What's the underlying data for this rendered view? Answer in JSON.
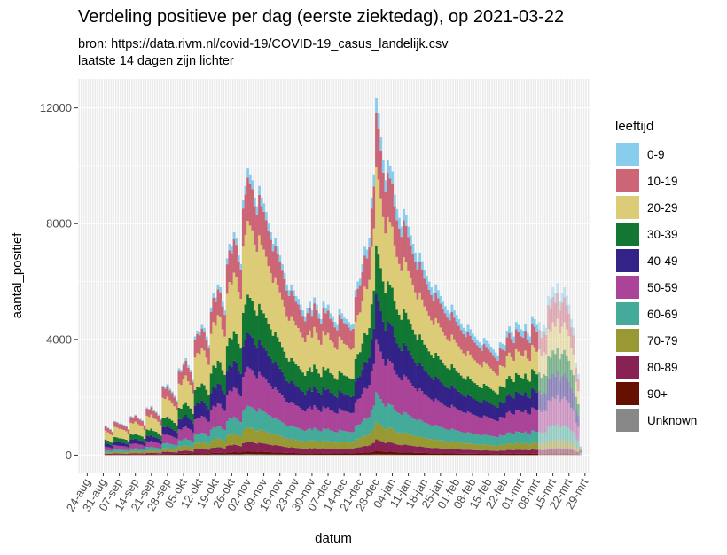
{
  "chart_data": {
    "type": "bar",
    "stacked": true,
    "title": "Verdeling positieve per dag (eerste ziektedag), op 2021-03-22",
    "subtitle": [
      "bron: https://data.rivm.nl/covid-19/COVID-19_casus_landelijk.csv",
      "laatste 14 dagen zijn lichter"
    ],
    "xlabel": "datum",
    "ylabel": "aantal_positief",
    "ylim": [
      -600,
      13000
    ],
    "yticks": [
      0,
      4000,
      8000,
      12000
    ],
    "ytick_labels": [
      "0",
      "4000",
      "8000",
      "12000"
    ],
    "x_start_date": "2020-08-20",
    "x_end_date": "2021-03-31",
    "xticks": [
      "24-aug",
      "31-aug",
      "07-sep",
      "14-sep",
      "21-sep",
      "28-sep",
      "05-okt",
      "12-okt",
      "19-okt",
      "26-okt",
      "02-nov",
      "09-nov",
      "16-nov",
      "23-nov",
      "30-nov",
      "07-dec",
      "14-dec",
      "21-dec",
      "28-dec",
      "04-jan",
      "11-jan",
      "18-jan",
      "25-jan",
      "01-feb",
      "08-feb",
      "15-feb",
      "22-feb",
      "01-mrt",
      "08-mrt",
      "15-mrt",
      "22-mrt",
      "29-mrt"
    ],
    "xtick_dates": [
      "2020-08-24",
      "2020-08-31",
      "2020-09-07",
      "2020-09-14",
      "2020-09-21",
      "2020-09-28",
      "2020-10-05",
      "2020-10-12",
      "2020-10-19",
      "2020-10-26",
      "2020-11-02",
      "2020-11-09",
      "2020-11-16",
      "2020-11-23",
      "2020-11-30",
      "2020-12-07",
      "2020-12-14",
      "2020-12-21",
      "2020-12-28",
      "2021-01-04",
      "2021-01-11",
      "2021-01-18",
      "2021-01-25",
      "2021-02-01",
      "2021-02-08",
      "2021-02-15",
      "2021-02-22",
      "2021-03-01",
      "2021-03-08",
      "2021-03-15",
      "2021-03-22",
      "2021-03-29"
    ],
    "first_date": "2020-09-01",
    "lighter_from": "2021-03-09",
    "legend_title": "leeftijd",
    "legend_position": "right",
    "grid": true,
    "totals": [
      1020,
      950,
      900,
      820,
      1180,
      1150,
      1100,
      1080,
      1050,
      1000,
      900,
      1350,
      1320,
      1400,
      1300,
      1250,
      1200,
      1050,
      1650,
      1600,
      1700,
      1550,
      1500,
      1400,
      1250,
      2400,
      2350,
      2450,
      2300,
      2200,
      2050,
      1900,
      3000,
      2950,
      3200,
      3350,
      3100,
      2950,
      2600,
      4100,
      4300,
      4250,
      4500,
      4400,
      4100,
      3800,
      5100,
      5600,
      5450,
      5900,
      5800,
      5300,
      5000,
      6800,
      7300,
      7200,
      7700,
      7500,
      6900,
      6600,
      8800,
      9300,
      9900,
      9700,
      9500,
      8900,
      8600,
      9300,
      8900,
      8700,
      8400,
      8000,
      7700,
      7300,
      7500,
      7200,
      6900,
      6600,
      6300,
      5900,
      5700,
      5900,
      5700,
      5500,
      5400,
      5200,
      5000,
      4800,
      5100,
      5300,
      5000,
      5450,
      5200,
      4900,
      4700,
      5300,
      5100,
      5200,
      4900,
      4800,
      4600,
      4500,
      5050,
      4900,
      4750,
      4700,
      4600,
      4500,
      4550,
      5700,
      6000,
      6100,
      6600,
      7200,
      7100,
      7500,
      8900,
      9700,
      12350,
      11800,
      11000,
      10200,
      9500,
      10200,
      10000,
      9800,
      9000,
      8500,
      8200,
      7900,
      8500,
      8300,
      7900,
      7600,
      7300,
      7000,
      6700,
      7000,
      6700,
      6400,
      6200,
      6000,
      5800,
      5600,
      5900,
      5700,
      5500,
      5300,
      5150,
      5000,
      4900,
      5200,
      5000,
      4850,
      4700,
      4550,
      4400,
      4300,
      4500,
      4350,
      4200,
      4100,
      4000,
      3900,
      3800,
      4050,
      3950,
      3850,
      3750,
      3650,
      3550,
      3450,
      3900,
      3850,
      3800,
      4300,
      4450,
      4250,
      4100,
      4600,
      4500,
      4350,
      4300,
      4550,
      4200,
      4100,
      4800,
      4700,
      4500,
      4600,
      4300,
      4500,
      4400,
      5500,
      5400,
      5800,
      5600,
      5950,
      5300,
      5600,
      5800,
      5500,
      5200,
      4700,
      4400,
      3200,
      2800,
      300
    ],
    "series": [
      {
        "name": "0-9",
        "color": "#88CCEE",
        "share_start": 0.02,
        "share_end": 0.06
      },
      {
        "name": "10-19",
        "color": "#CC6677",
        "share_start": 0.15,
        "share_end": 0.15
      },
      {
        "name": "20-29",
        "color": "#DDCC77",
        "share_start": 0.3,
        "share_end": 0.16
      },
      {
        "name": "30-39",
        "color": "#117733",
        "share_start": 0.13,
        "share_end": 0.14
      },
      {
        "name": "40-49",
        "color": "#332288",
        "share_start": 0.11,
        "share_end": 0.14
      },
      {
        "name": "50-59",
        "color": "#AA4499",
        "share_start": 0.12,
        "share_end": 0.17
      },
      {
        "name": "60-69",
        "color": "#44AA99",
        "share_start": 0.07,
        "share_end": 0.09
      },
      {
        "name": "70-79",
        "color": "#999933",
        "share_start": 0.05,
        "share_end": 0.05
      },
      {
        "name": "80-89",
        "color": "#882255",
        "share_start": 0.035,
        "share_end": 0.03
      },
      {
        "name": "90+",
        "color": "#661100",
        "share_start": 0.01,
        "share_end": 0.01
      },
      {
        "name": "Unknown",
        "color": "#888888",
        "share_start": 0.005,
        "share_end": 0.0
      }
    ]
  },
  "legend": {
    "title": "leeftijd",
    "items": [
      "0-9",
      "10-19",
      "20-29",
      "30-39",
      "40-49",
      "50-59",
      "60-69",
      "70-79",
      "80-89",
      "90+",
      "Unknown"
    ]
  }
}
